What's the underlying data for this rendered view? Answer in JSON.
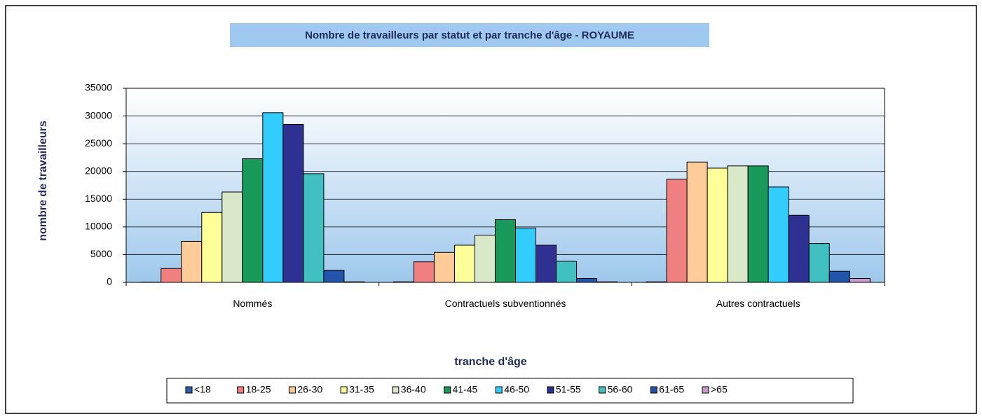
{
  "chart_data": {
    "type": "bar",
    "title": "Nombre de travailleurs par statut et par tranche d'âge - ROYAUME",
    "xlabel": "tranche d'âge",
    "ylabel": "nombre de travailleurs",
    "categories": [
      "Nommés",
      "Contractuels subventionnés",
      "Autres contractuels"
    ],
    "series": [
      {
        "name": "<18",
        "color": "#2e5ea8",
        "values": [
          50,
          100,
          100
        ]
      },
      {
        "name": "18-25",
        "color": "#f08080",
        "values": [
          2500,
          3700,
          18600
        ]
      },
      {
        "name": "26-30",
        "color": "#ffcc99",
        "values": [
          7400,
          5400,
          21700
        ]
      },
      {
        "name": "31-35",
        "color": "#ffff99",
        "values": [
          12600,
          6700,
          20600
        ]
      },
      {
        "name": "36-40",
        "color": "#d8e8c8",
        "values": [
          16300,
          8500,
          21000
        ]
      },
      {
        "name": "41-45",
        "color": "#1a9a5a",
        "values": [
          22300,
          11300,
          21000
        ]
      },
      {
        "name": "46-50",
        "color": "#33ccff",
        "values": [
          30600,
          9800,
          17200
        ]
      },
      {
        "name": "51-55",
        "color": "#2e3192",
        "values": [
          28500,
          6700,
          12100
        ]
      },
      {
        "name": "56-60",
        "color": "#40c0c0",
        "values": [
          19600,
          3800,
          7000
        ]
      },
      {
        "name": "61-65",
        "color": "#2255aa",
        "values": [
          2200,
          700,
          2000
        ]
      },
      {
        "name": ">65",
        "color": "#cc99cc",
        "values": [
          100,
          100,
          700
        ]
      }
    ],
    "ylim": [
      0,
      35000
    ],
    "yticks": [
      0,
      5000,
      10000,
      15000,
      20000,
      25000,
      30000,
      35000
    ],
    "grid": true,
    "legend": "bottom"
  }
}
